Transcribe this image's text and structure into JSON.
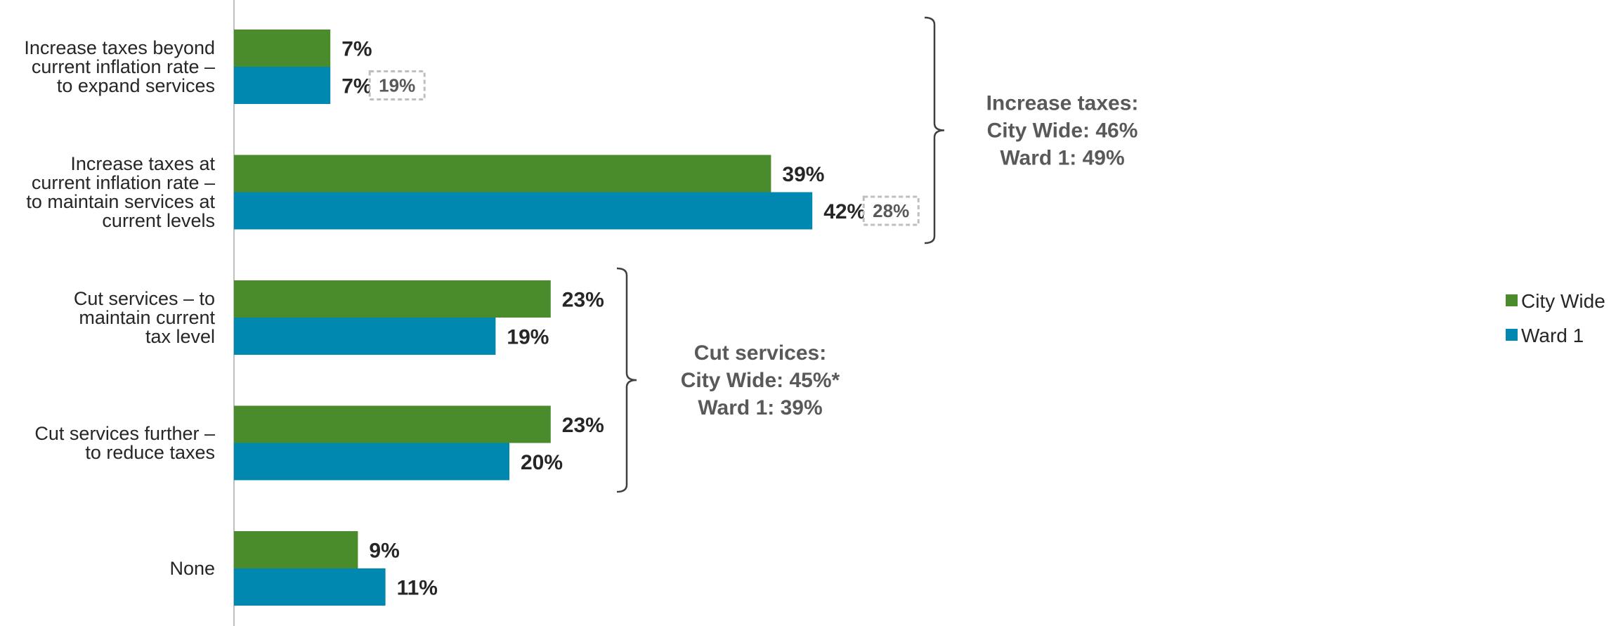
{
  "chart_data": {
    "type": "bar",
    "orientation": "horizontal",
    "categories": [
      [
        "Increase taxes beyond",
        "current inflation rate –",
        "to expand services"
      ],
      [
        "Increase taxes at",
        "current inflation rate –",
        "to maintain services at",
        "current levels"
      ],
      [
        "Cut services – to",
        "maintain current",
        "tax level"
      ],
      [
        "Cut services further –",
        "to reduce taxes"
      ],
      [
        "None"
      ]
    ],
    "series": [
      {
        "name": "City Wide",
        "color": "#4a8b2c",
        "values": [
          7,
          39,
          23,
          23,
          9
        ],
        "value_labels": [
          "7%",
          "39%",
          "23%",
          "23%",
          "9%"
        ]
      },
      {
        "name": "Ward 1",
        "color": "#0088b0",
        "values": [
          7,
          42,
          19,
          20,
          11
        ],
        "value_labels": [
          "7%",
          "42%",
          "19%",
          "20%",
          "11%"
        ]
      }
    ],
    "comparison_boxes": [
      {
        "category_index": 0,
        "series_index": 1,
        "label": "19%"
      },
      {
        "category_index": 1,
        "series_index": 1,
        "label": "28%"
      }
    ],
    "group_annotations": [
      {
        "categories": [
          0,
          1
        ],
        "lines": [
          "Increase taxes:",
          "City Wide: 46%",
          "Ward 1: 49%"
        ]
      },
      {
        "categories": [
          2,
          3
        ],
        "lines": [
          "Cut services:",
          "City Wide: 45%*",
          "Ward 1: 39%"
        ]
      }
    ],
    "legend": {
      "position": "right"
    },
    "xlim": [
      0,
      100
    ],
    "grid": false
  }
}
